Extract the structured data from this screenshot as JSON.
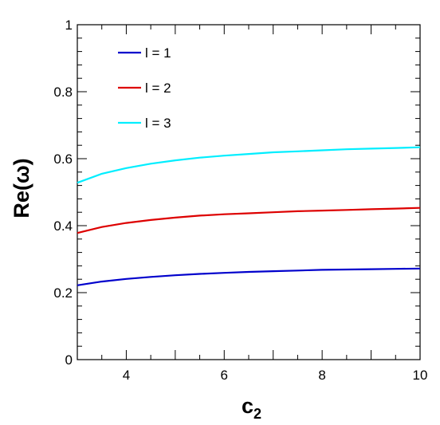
{
  "chart_data": {
    "type": "line",
    "xlabel": "c",
    "xlabel_sub": "2",
    "ylabel": "Re(ω)",
    "xlim": [
      3,
      10
    ],
    "ylim": [
      0,
      1
    ],
    "x_ticks": [
      4,
      6,
      8,
      10
    ],
    "y_ticks": [
      0,
      0.2,
      0.4,
      0.6,
      0.8,
      1
    ],
    "y_tick_labels": [
      "0",
      "0.2",
      "0.4",
      "0.6",
      "0.8",
      "1"
    ],
    "grid": false,
    "legend_position": "top-left",
    "x": [
      3.0,
      3.5,
      4.0,
      4.5,
      5.0,
      5.5,
      6.0,
      6.5,
      7.0,
      7.5,
      8.0,
      8.5,
      9.0,
      9.5,
      10.0
    ],
    "series": [
      {
        "name": "l = 1",
        "color": "#0000cc",
        "values": [
          0.222,
          0.233,
          0.241,
          0.247,
          0.252,
          0.256,
          0.259,
          0.262,
          0.264,
          0.266,
          0.268,
          0.269,
          0.27,
          0.271,
          0.272
        ]
      },
      {
        "name": "l = 2",
        "color": "#dd0000",
        "values": [
          0.378,
          0.396,
          0.408,
          0.417,
          0.424,
          0.43,
          0.434,
          0.437,
          0.44,
          0.443,
          0.445,
          0.447,
          0.449,
          0.451,
          0.453
        ]
      },
      {
        "name": "l = 3",
        "color": "#00eeff",
        "values": [
          0.528,
          0.555,
          0.572,
          0.585,
          0.595,
          0.603,
          0.609,
          0.614,
          0.619,
          0.622,
          0.625,
          0.628,
          0.63,
          0.632,
          0.634
        ]
      }
    ]
  }
}
